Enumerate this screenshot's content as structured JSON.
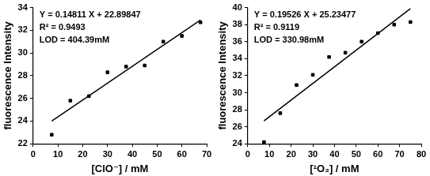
{
  "chart_data": [
    {
      "type": "scatter",
      "x": [
        7.5,
        15,
        22.5,
        30,
        37.5,
        45,
        52.5,
        60,
        67.5
      ],
      "values": [
        22.8,
        25.8,
        26.2,
        28.3,
        28.8,
        28.9,
        31.0,
        31.5,
        32.7
      ],
      "color": "#000000",
      "marker": "square",
      "grid": false,
      "fit": {
        "slope": 0.14811,
        "intercept": 22.89847,
        "x": [
          7.5,
          67.5
        ]
      },
      "annotations": [
        "Y = 0.14811 X + 22.89847",
        "R² = 0.9493",
        "LOD = 404.39mM"
      ],
      "x_label": "[ClO⁻] / mM",
      "y_label": "fluorescence Intensity",
      "xlim": [
        0,
        70
      ],
      "xticks": [
        0,
        10,
        20,
        30,
        40,
        50,
        60,
        70
      ],
      "ylim": [
        22,
        34
      ],
      "yticks": [
        22,
        24,
        26,
        28,
        30,
        32,
        34
      ]
    },
    {
      "type": "scatter",
      "x": [
        7.5,
        15,
        22.5,
        30,
        37.5,
        45,
        52.5,
        60,
        67.5,
        75
      ],
      "values": [
        24.2,
        27.6,
        30.9,
        32.1,
        34.2,
        34.7,
        36.0,
        37.0,
        38.0,
        38.3
      ],
      "color": "#000000",
      "marker": "square",
      "grid": false,
      "fit": {
        "slope": 0.19526,
        "intercept": 25.23477,
        "x": [
          7.5,
          75
        ]
      },
      "annotations": [
        "Y = 0.19526 X + 25.23477",
        "R² = 0.9119",
        "LOD = 330.98mM"
      ],
      "x_label": "[¹O₂] / mM",
      "y_label": "fluorescence Intensity",
      "xlim": [
        0,
        80
      ],
      "xticks": [
        0,
        10,
        20,
        30,
        40,
        50,
        60,
        70,
        80
      ],
      "ylim": [
        24,
        40
      ],
      "yticks": [
        24,
        26,
        28,
        30,
        32,
        34,
        36,
        38,
        40
      ]
    }
  ]
}
